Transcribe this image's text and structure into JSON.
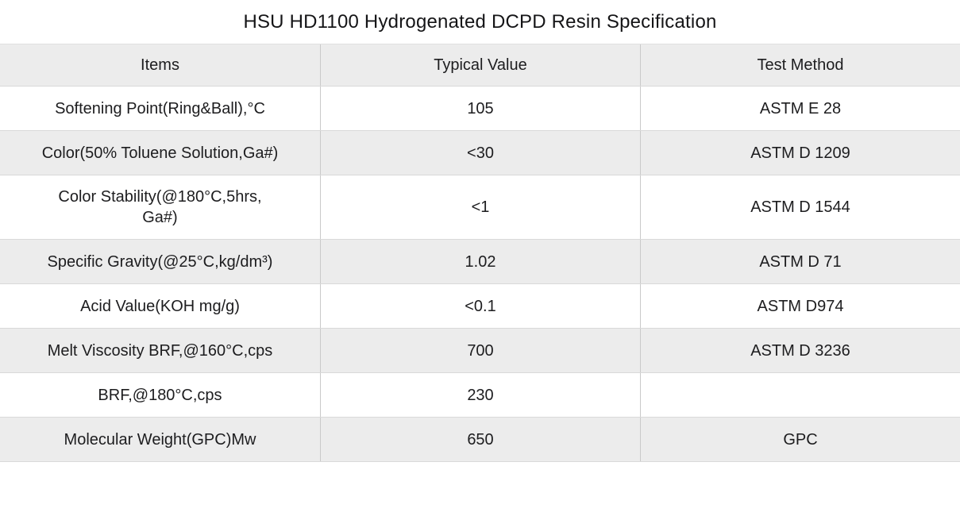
{
  "page": {
    "title": "HSU HD1100 Hydrogenated DCPD Resin Specification"
  },
  "table": {
    "columns": [
      "Items",
      "Typical Value",
      "Test Method"
    ],
    "rows": [
      {
        "item": "Softening Point(Ring&Ball),°C",
        "value": "105",
        "method": "ASTM E 28"
      },
      {
        "item": "Color(50% Toluene Solution,Ga#)",
        "value": "<30",
        "method": "ASTM D 1209"
      },
      {
        "item": "Color Stability(@180°C,5hrs,\nGa#)",
        "value": "<1",
        "method": "ASTM D 1544"
      },
      {
        "item": "Specific Gravity(@25°C,kg/dm³)",
        "value": "1.02",
        "method": "ASTM D 71"
      },
      {
        "item": "Acid Value(KOH mg/g)",
        "value": "<0.1",
        "method": "ASTM D974"
      },
      {
        "item": "Melt Viscosity BRF,@160°C,cps",
        "value": "700",
        "method": "ASTM D 3236"
      },
      {
        "item": "BRF,@180°C,cps",
        "value": "230",
        "method": ""
      },
      {
        "item": "Molecular Weight(GPC)Mw",
        "value": "650",
        "method": "GPC"
      }
    ],
    "colors": {
      "stripe_bg": "#ececec",
      "row_bg": "#ffffff",
      "horizontal_border": "#d9d9d9",
      "vertical_border": "#c9c9c9",
      "text": "#1d1d1f"
    }
  }
}
